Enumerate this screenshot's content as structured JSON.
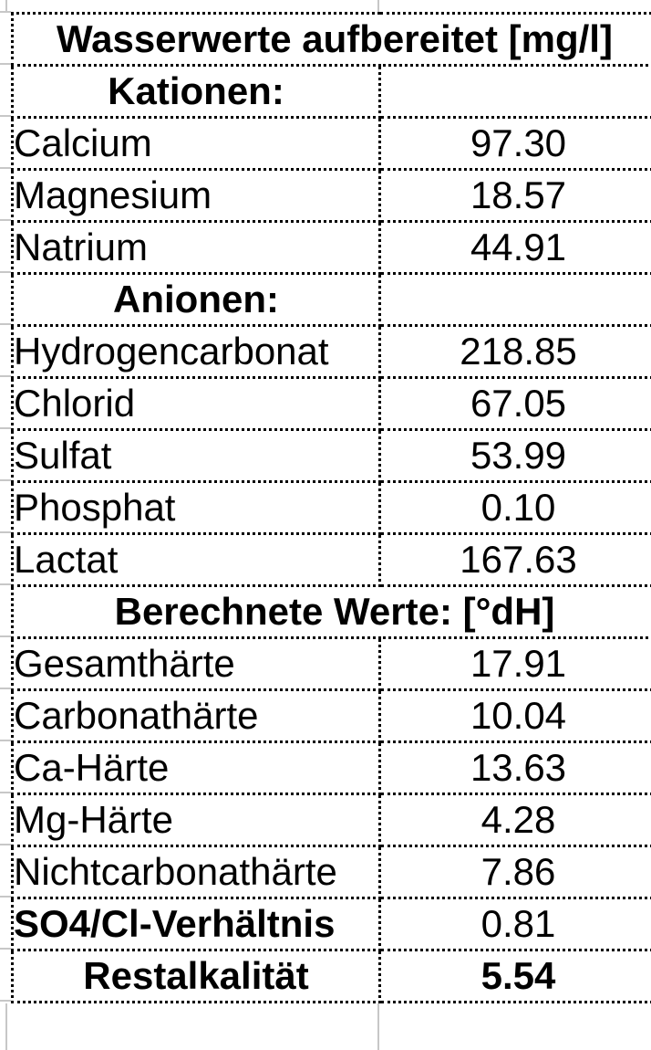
{
  "title": {
    "text": "Wasserwerte aufbereitet [mg/l]"
  },
  "sections": {
    "kationen": {
      "label": "Kationen:"
    },
    "anionen": {
      "label": "Anionen:"
    },
    "berechnete": {
      "label": "Berechnete Werte: [°dH]"
    }
  },
  "rows": {
    "calcium": {
      "label": "Calcium",
      "value": "97.30"
    },
    "magnesium": {
      "label": "Magnesium",
      "value": "18.57"
    },
    "natrium": {
      "label": "Natrium",
      "value": "44.91"
    },
    "hydrogencarbonat": {
      "label": "Hydrogencarbonat",
      "value": "218.85"
    },
    "chlorid": {
      "label": "Chlorid",
      "value": "67.05"
    },
    "sulfat": {
      "label": "Sulfat",
      "value": "53.99"
    },
    "phosphat": {
      "label": "Phosphat",
      "value": "0.10"
    },
    "lactat": {
      "label": "Lactat",
      "value": "167.63"
    },
    "gesamthaerte": {
      "label": "Gesamthärte",
      "value": "17.91"
    },
    "carbonathaerte": {
      "label": "Carbonathärte",
      "value": "10.04"
    },
    "ca_haerte": {
      "label": "Ca-Härte",
      "value": "13.63"
    },
    "mg_haerte": {
      "label": "Mg-Härte",
      "value": "4.28"
    },
    "nichtcarbonathaerte": {
      "label": "Nichtcarbonathärte",
      "value": "7.86"
    },
    "so4_cl_verhaeltnis": {
      "label": "SO4/Cl-Verhältnis",
      "value": "0.81"
    },
    "restalkalitaet": {
      "label": "Restalkalität",
      "value": "5.54"
    }
  },
  "colors": {
    "border": "#000000",
    "gridline": "#c7c7c7",
    "text": "#000000",
    "background": "#ffffff"
  }
}
